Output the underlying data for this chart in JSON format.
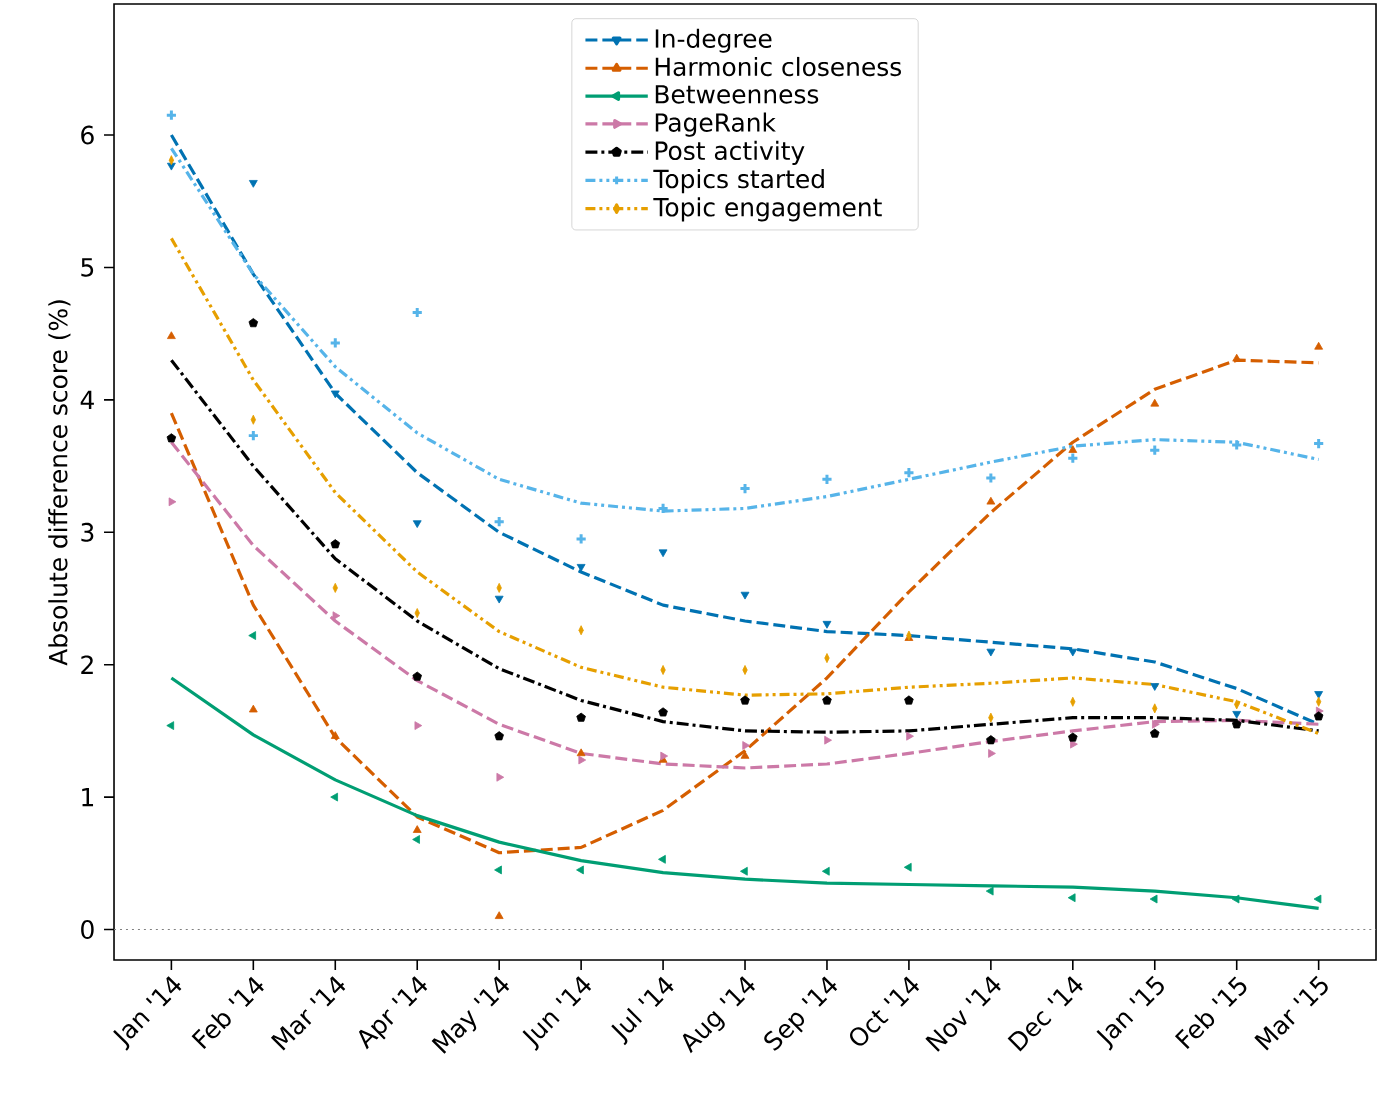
{
  "chart_data": {
    "type": "line",
    "ylabel": "Absolute difference score (%)",
    "categories": [
      "Jan '14",
      "Feb '14",
      "Mar '14",
      "Apr '14",
      "May '14",
      "Jun '14",
      "Jul '14",
      "Aug '14",
      "Sep '14",
      "Oct '14",
      "Nov '14",
      "Dec '14",
      "Jan '15",
      "Feb '15",
      "Mar '15"
    ],
    "ylim": [
      -0.23,
      6.99
    ],
    "yticks": [
      0,
      1,
      2,
      3,
      4,
      5,
      6
    ],
    "legend": "top",
    "ref_lines": [
      {
        "axis": "y",
        "value": 0,
        "color": "#808080",
        "line_style": "dotted"
      }
    ],
    "series": [
      {
        "type": "scatter",
        "color": "#0072b2",
        "marker": "triangle_down",
        "values": [
          5.77,
          5.64,
          4.05,
          3.07,
          2.5,
          2.74,
          2.85,
          2.53,
          2.31,
          null,
          2.1,
          2.1,
          1.84,
          1.63,
          1.78
        ]
      },
      {
        "type": "line",
        "name": "In-degree",
        "color": "#0072b2",
        "line_style": "dashed",
        "marker": "none",
        "values": [
          6.0,
          4.95,
          4.05,
          3.45,
          3.0,
          2.7,
          2.45,
          2.33,
          2.25,
          2.22,
          2.17,
          2.12,
          2.02,
          1.82,
          1.55
        ]
      },
      {
        "type": "scatter",
        "color": "#d55e00",
        "marker": "triangle",
        "values": [
          4.48,
          1.66,
          1.46,
          0.75,
          0.1,
          1.33,
          1.28,
          1.31,
          null,
          2.2,
          3.23,
          3.62,
          3.97,
          4.31,
          4.4
        ]
      },
      {
        "type": "line",
        "name": "Harmonic closeness",
        "color": "#d55e00",
        "line_style": "dashed",
        "marker": "none",
        "values": [
          3.9,
          2.45,
          1.45,
          0.85,
          0.58,
          0.62,
          0.9,
          1.35,
          1.9,
          2.55,
          3.15,
          3.68,
          4.08,
          4.3,
          4.28
        ]
      },
      {
        "type": "scatter",
        "color": "#009e73",
        "marker": "triangle_left",
        "values": [
          1.54,
          2.22,
          1.0,
          0.68,
          0.45,
          0.45,
          0.53,
          0.44,
          0.44,
          0.47,
          0.29,
          0.24,
          0.23,
          0.23,
          0.23
        ]
      },
      {
        "type": "line",
        "name": "Betweenness",
        "color": "#009e73",
        "line_style": "solid",
        "marker": "none",
        "values": [
          1.9,
          1.47,
          1.13,
          0.86,
          0.66,
          0.52,
          0.43,
          0.38,
          0.35,
          0.34,
          0.33,
          0.32,
          0.29,
          0.24,
          0.16
        ]
      },
      {
        "type": "scatter",
        "color": "#cc79a7",
        "marker": "triangle_right",
        "values": [
          3.23,
          null,
          2.37,
          1.54,
          1.15,
          1.28,
          1.31,
          1.39,
          1.43,
          1.46,
          1.33,
          1.4,
          1.55,
          null,
          1.65
        ]
      },
      {
        "type": "line",
        "name": "PageRank",
        "color": "#cc79a7",
        "line_style": "dashed",
        "marker": "none",
        "values": [
          3.68,
          2.9,
          2.33,
          1.88,
          1.55,
          1.33,
          1.25,
          1.22,
          1.25,
          1.33,
          1.42,
          1.5,
          1.57,
          1.58,
          1.55
        ]
      },
      {
        "type": "scatter",
        "color": "#000000",
        "marker": "star",
        "values": [
          3.71,
          4.58,
          2.91,
          1.91,
          1.46,
          1.6,
          1.64,
          1.73,
          1.73,
          1.73,
          1.43,
          1.45,
          1.48,
          1.55,
          1.61
        ]
      },
      {
        "type": "line",
        "name": "Post activity",
        "color": "#000000",
        "line_style": "dashdot",
        "marker": "none",
        "values": [
          4.3,
          3.5,
          2.8,
          2.33,
          1.97,
          1.73,
          1.57,
          1.5,
          1.49,
          1.5,
          1.55,
          1.6,
          1.6,
          1.58,
          1.5
        ]
      },
      {
        "type": "scatter",
        "color": "#56b4e9",
        "marker": "cross",
        "values": [
          6.15,
          3.73,
          4.43,
          4.66,
          3.08,
          2.95,
          3.18,
          3.33,
          3.4,
          3.45,
          3.41,
          3.56,
          3.62,
          3.66,
          3.67
        ]
      },
      {
        "type": "line",
        "name": "Topics started",
        "color": "#56b4e9",
        "line_style": "dashdotdot",
        "marker": "none",
        "values": [
          5.9,
          4.95,
          4.25,
          3.75,
          3.4,
          3.22,
          3.16,
          3.18,
          3.27,
          3.4,
          3.53,
          3.65,
          3.7,
          3.68,
          3.55
        ]
      },
      {
        "type": "scatter",
        "color": "#e69f00",
        "marker": "diamond",
        "values": [
          5.81,
          3.85,
          2.58,
          2.39,
          2.58,
          2.26,
          1.96,
          1.96,
          2.05,
          2.22,
          1.6,
          1.72,
          1.67,
          1.7,
          1.72
        ]
      },
      {
        "type": "line",
        "name": "Topic engagement",
        "color": "#e69f00",
        "line_style": "dashdotdot",
        "marker": "none",
        "values": [
          5.22,
          4.15,
          3.3,
          2.7,
          2.25,
          1.98,
          1.83,
          1.77,
          1.78,
          1.83,
          1.86,
          1.9,
          1.85,
          1.72,
          1.48
        ]
      }
    ]
  }
}
